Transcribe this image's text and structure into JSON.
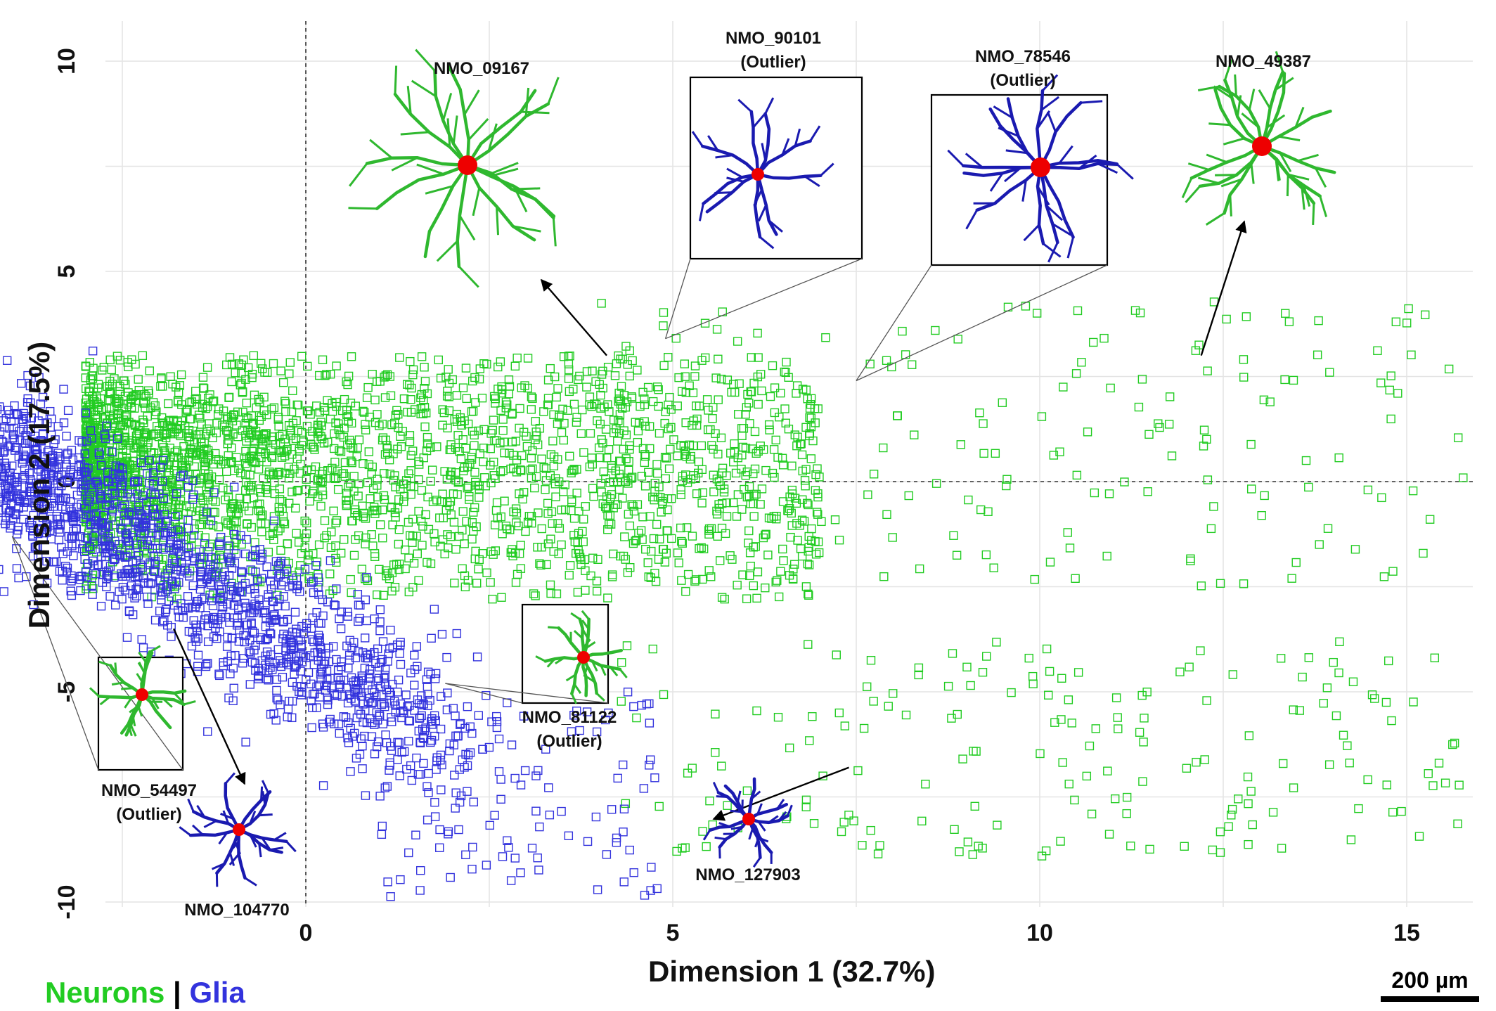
{
  "chart_data": {
    "type": "scatter",
    "xlabel": "Dimension 1 (32.7%)",
    "ylabel": "Dimension 2 (17.5%)",
    "xlim": [
      -5,
      16
    ],
    "ylim": [
      -10.5,
      11
    ],
    "x_ticks": [
      "0",
      "5",
      "10",
      "15"
    ],
    "x_tick_values": [
      0,
      5,
      10,
      15
    ],
    "y_ticks": [
      "10",
      "5",
      "0",
      "-5",
      "-10"
    ],
    "y_tick_values": [
      10,
      5,
      0,
      -5,
      -10
    ],
    "grid": true,
    "reference_lines": {
      "x": 0,
      "y": 0
    },
    "series": [
      {
        "name": "Neurons",
        "color": "#22cc22"
      },
      {
        "name": "Glia",
        "color": "#3333dd"
      }
    ],
    "annotations": [
      {
        "id": "NMO_09167",
        "label": "NMO_09167",
        "sub": "",
        "x": 4.1,
        "y": 3.0,
        "cls": "neuron"
      },
      {
        "id": "NMO_90101",
        "label": "NMO_90101",
        "sub": "(Outlier)",
        "x": 4.9,
        "y": 3.4,
        "cls": "glia"
      },
      {
        "id": "NMO_78546",
        "label": "NMO_78546",
        "sub": "(Outlier)",
        "x": 7.5,
        "y": 2.4,
        "cls": "glia"
      },
      {
        "id": "NMO_49387",
        "label": "NMO_49387",
        "sub": "",
        "x": 12.2,
        "y": 3.0,
        "cls": "neuron"
      },
      {
        "id": "NMO_54497",
        "label": "NMO_54497",
        "sub": "(Outlier)",
        "x": -4.0,
        "y": -1.3,
        "cls": "neuron"
      },
      {
        "id": "NMO_104770",
        "label": "NMO_104770",
        "sub": "",
        "x": -1.8,
        "y": -3.5,
        "cls": "glia"
      },
      {
        "id": "NMO_81122",
        "label": "NMO_81122",
        "sub": "(Outlier)",
        "x": 1.9,
        "y": -4.8,
        "cls": "neuron"
      },
      {
        "id": "NMO_127903",
        "label": "NMO_127903",
        "sub": "",
        "x": 7.4,
        "y": -6.8,
        "cls": "glia"
      }
    ]
  },
  "legend": {
    "neurons_label": "Neurons",
    "separator": "|",
    "glia_label": "Glia",
    "neurons_color": "#22cc22",
    "glia_color": "#3333dd"
  },
  "scale_bar": {
    "label": "200 µm"
  }
}
